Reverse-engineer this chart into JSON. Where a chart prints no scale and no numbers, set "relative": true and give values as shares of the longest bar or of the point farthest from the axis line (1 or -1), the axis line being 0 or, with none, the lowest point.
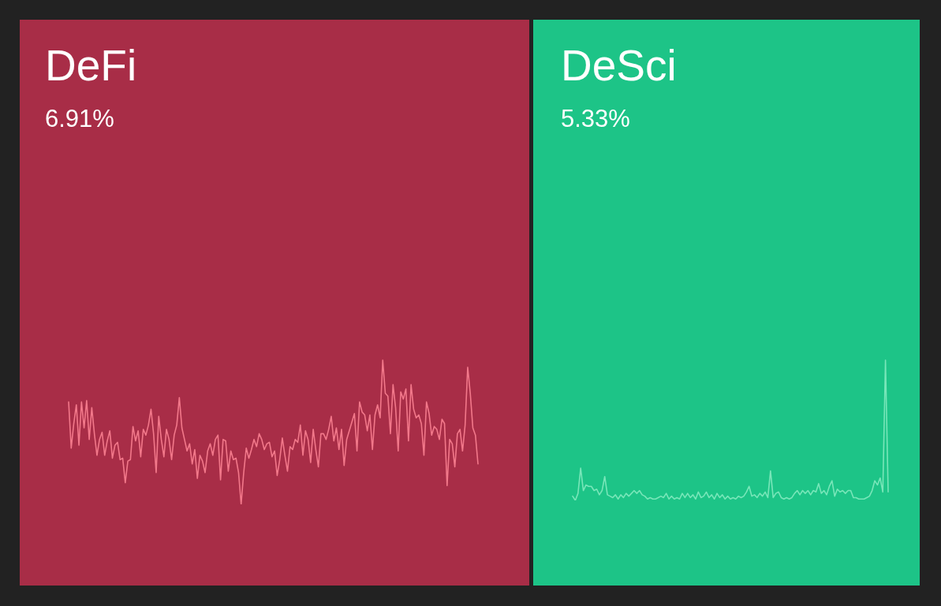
{
  "chart_data": [
    {
      "type": "line",
      "title": "DeFi",
      "subtitle": "6.91%",
      "relative": true,
      "categories": [
        null,
        null,
        null,
        null,
        null,
        null,
        null,
        null,
        null,
        null,
        null,
        null,
        null,
        null,
        null,
        null,
        null,
        null,
        null,
        null,
        null,
        null,
        null,
        null,
        null,
        null,
        null,
        null,
        null,
        null,
        null,
        null,
        null,
        null,
        null,
        null,
        null,
        null,
        null,
        null,
        null,
        null,
        null,
        null,
        null,
        null,
        null,
        null,
        null,
        null,
        null,
        null,
        null,
        null,
        null,
        null,
        null,
        null,
        null,
        null,
        null,
        null,
        null,
        null,
        null,
        null,
        null,
        null,
        null,
        null,
        null,
        null,
        null,
        null,
        null,
        null,
        null,
        null,
        null,
        null,
        null,
        null,
        null,
        null,
        null,
        null,
        null,
        null,
        null,
        null,
        null,
        null,
        null,
        null,
        null,
        null,
        null,
        null,
        null,
        null,
        null,
        null,
        null,
        null,
        null,
        null,
        null,
        null,
        null,
        null,
        null,
        null,
        null,
        null,
        null,
        null,
        null,
        null,
        null,
        null,
        null,
        null,
        null,
        null,
        null,
        null,
        null,
        null,
        null,
        null,
        null,
        null,
        null,
        null,
        null,
        null,
        null,
        null,
        null,
        null,
        null,
        null,
        null,
        null,
        null,
        null,
        null,
        null,
        null,
        null,
        null,
        null,
        null,
        null,
        null,
        null,
        null,
        null,
        null,
        null
      ],
      "series": [
        {
          "color": "#f2788a",
          "values": [
            0.71,
            0.39,
            0.56,
            0.69,
            0.41,
            0.71,
            0.53,
            0.72,
            0.45,
            0.67,
            0.49,
            0.34,
            0.45,
            0.5,
            0.34,
            0.44,
            0.51,
            0.32,
            0.41,
            0.43,
            0.31,
            0.32,
            0.15,
            0.3,
            0.31,
            0.54,
            0.44,
            0.51,
            0.33,
            0.52,
            0.48,
            0.55,
            0.66,
            0.49,
            0.22,
            0.61,
            0.45,
            0.33,
            0.52,
            0.45,
            0.31,
            0.48,
            0.55,
            0.74,
            0.53,
            0.45,
            0.37,
            0.42,
            0.28,
            0.38,
            0.18,
            0.34,
            0.3,
            0.22,
            0.37,
            0.42,
            0.34,
            0.45,
            0.48,
            0.17,
            0.45,
            0.44,
            0.23,
            0.37,
            0.31,
            0.32,
            0.22,
            0,
            0.22,
            0.39,
            0.32,
            0.38,
            0.45,
            0.4,
            0.49,
            0.45,
            0.38,
            0.42,
            0.43,
            0.33,
            0.37,
            0.2,
            0.31,
            0.46,
            0.34,
            0.23,
            0.4,
            0.38,
            0.45,
            0.43,
            0.55,
            0.34,
            0.51,
            0.45,
            0.29,
            0.52,
            0.38,
            0.26,
            0.49,
            0.49,
            0.45,
            0.52,
            0.61,
            0.44,
            0.53,
            0.38,
            0.52,
            0.27,
            0.45,
            0.51,
            0.57,
            0.63,
            0.37,
            0.71,
            0.64,
            0.62,
            0.51,
            0.62,
            0.38,
            0.62,
            0.69,
            0.6,
            1.0,
            0.77,
            0.75,
            0.49,
            0.83,
            0.67,
            0.37,
            0.78,
            0.73,
            0.8,
            0.44,
            0.83,
            0.66,
            0.6,
            0.62,
            0.56,
            0.34,
            0.71,
            0.63,
            0.48,
            0.54,
            0.52,
            0.45,
            0.59,
            0.56,
            0.13,
            0.45,
            0.42,
            0.26,
            0.49,
            0.52,
            0.37,
            0.55,
            0.95,
            0.77,
            0.53,
            0.48,
            0.28
          ]
        }
      ]
    },
    {
      "type": "line",
      "title": "DeSci",
      "subtitle": "5.33%",
      "relative": true,
      "categories": [
        null,
        null,
        null,
        null,
        null,
        null,
        null,
        null,
        null,
        null,
        null,
        null,
        null,
        null,
        null,
        null,
        null,
        null,
        null,
        null,
        null,
        null,
        null,
        null,
        null,
        null,
        null,
        null,
        null,
        null,
        null,
        null,
        null,
        null,
        null,
        null,
        null,
        null,
        null,
        null,
        null,
        null,
        null,
        null,
        null,
        null,
        null,
        null,
        null,
        null,
        null,
        null,
        null,
        null,
        null,
        null,
        null,
        null,
        null,
        null,
        null,
        null,
        null,
        null,
        null,
        null,
        null,
        null,
        null,
        null,
        null,
        null,
        null,
        null,
        null,
        null,
        null,
        null,
        null,
        null,
        null,
        null,
        null,
        null,
        null,
        null,
        null,
        null,
        null,
        null,
        null,
        null,
        null,
        null,
        null,
        null,
        null,
        null,
        null,
        null,
        null,
        null,
        null,
        null,
        null,
        null,
        null,
        null,
        null,
        null,
        null,
        null,
        null,
        null,
        null,
        null,
        null,
        null,
        null
      ],
      "series": [
        {
          "color": "#78e6b9",
          "values": [
            0.03,
            0,
            0.05,
            0.23,
            0.07,
            0.11,
            0.1,
            0.1,
            0.07,
            0.08,
            0.04,
            0.07,
            0.17,
            0.04,
            0.03,
            0.02,
            0.04,
            0.01,
            0.04,
            0.02,
            0.05,
            0.03,
            0.05,
            0.07,
            0.05,
            0.07,
            0.04,
            0.03,
            0.01,
            0.02,
            0.01,
            0.01,
            0.02,
            0.03,
            0.02,
            0.05,
            0.01,
            0.03,
            0.01,
            0.02,
            0.01,
            0.05,
            0.02,
            0.05,
            0.02,
            0.04,
            0.01,
            0.06,
            0.02,
            0.03,
            0.06,
            0.02,
            0.04,
            0.01,
            0.05,
            0.02,
            0.04,
            0.01,
            0.03,
            0.01,
            0.02,
            0.01,
            0.03,
            0.02,
            0.03,
            0.06,
            0.1,
            0.03,
            0.04,
            0.02,
            0.05,
            0.03,
            0.06,
            0.02,
            0.21,
            0.02,
            0.05,
            0.06,
            0.02,
            0.01,
            0.02,
            0.01,
            0.02,
            0.05,
            0.07,
            0.04,
            0.07,
            0.05,
            0.07,
            0.04,
            0.07,
            0.06,
            0.12,
            0.05,
            0.07,
            0.04,
            0.1,
            0.14,
            0.03,
            0.08,
            0.06,
            0.07,
            0.05,
            0.07,
            0.07,
            0.02,
            0.02,
            0.01,
            0.01,
            0.01,
            0.02,
            0.03,
            0.07,
            0.14,
            0.11,
            0.16,
            0.06,
            1.0,
            0.06
          ]
        }
      ]
    }
  ]
}
